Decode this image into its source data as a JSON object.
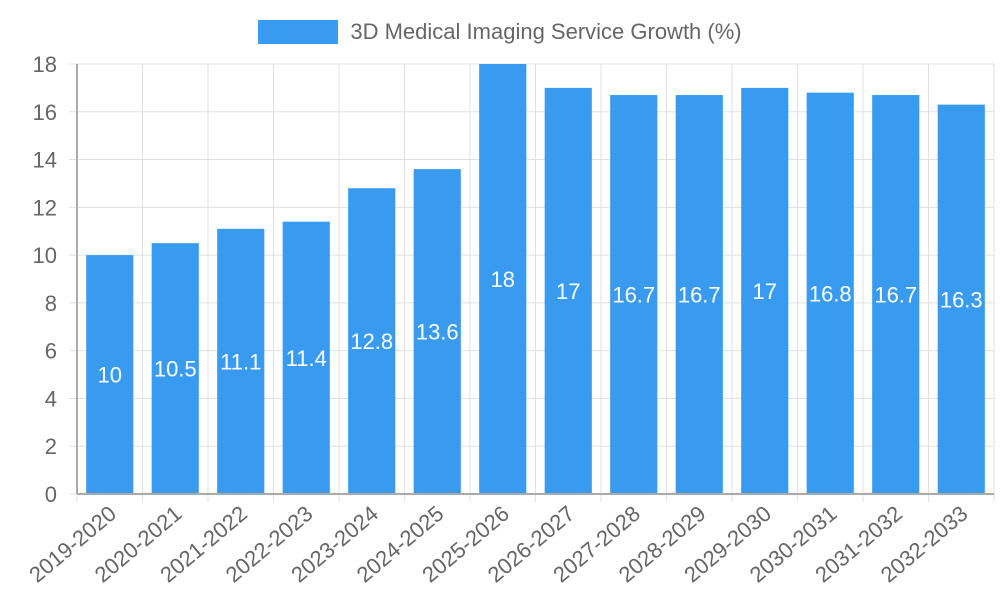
{
  "chart_data": {
    "type": "bar",
    "title": "",
    "xlabel": "",
    "ylabel": "",
    "ylim": [
      0,
      18
    ],
    "yticks": [
      0,
      2,
      4,
      6,
      8,
      10,
      12,
      14,
      16,
      18
    ],
    "grid": true,
    "legend_position": "top",
    "categories": [
      "2019-2020",
      "2020-2021",
      "2021-2022",
      "2022-2023",
      "2023-2024",
      "2024-2025",
      "2025-2026",
      "2026-2027",
      "2027-2028",
      "2028-2029",
      "2029-2030",
      "2030-2031",
      "2031-2032",
      "2032-2033"
    ],
    "series": [
      {
        "name": "3D Medical Imaging Service Growth (%)",
        "color": "#399bf0",
        "values": [
          10,
          10.5,
          11.1,
          11.4,
          12.8,
          13.6,
          18,
          17,
          16.7,
          16.7,
          17,
          16.8,
          16.7,
          16.3
        ]
      }
    ],
    "data_labels": true
  },
  "legend": {
    "label": "3D Medical Imaging Service Growth (%)",
    "color": "#399bf0"
  }
}
